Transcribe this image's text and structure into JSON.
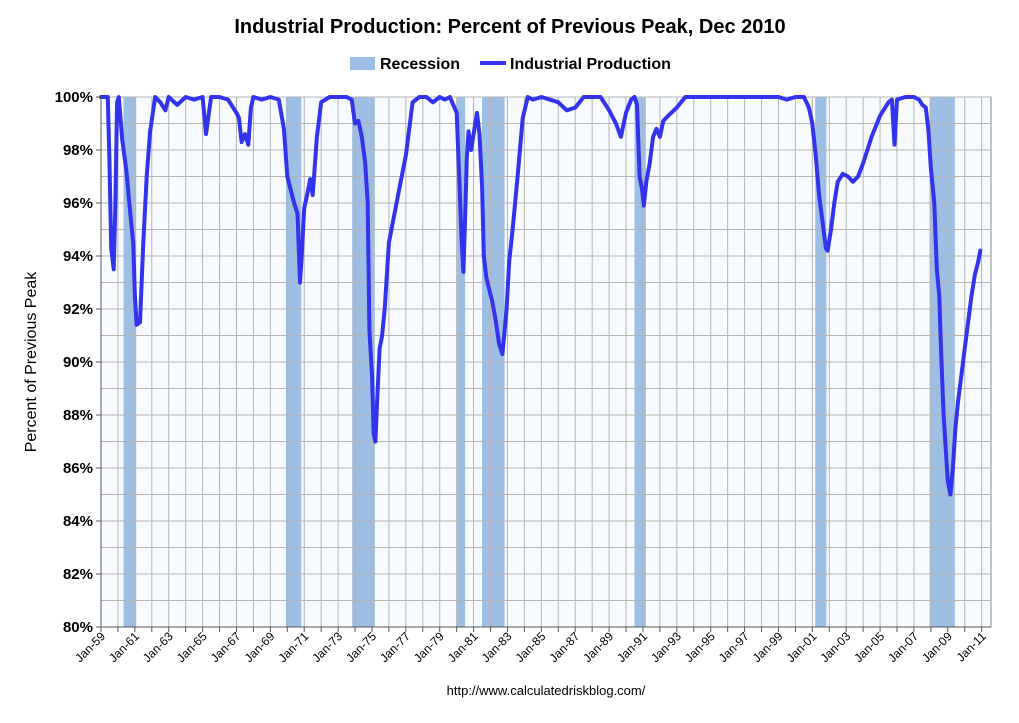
{
  "chart_data": {
    "type": "line",
    "title": "Industrial Production: Percent of Previous Peak, Dec 2010",
    "ylabel": "Percent of Previous Peak",
    "xlabel": "",
    "source": "http://www.calculatedriskblog.com/",
    "ylim": [
      80,
      100
    ],
    "xlim": [
      1959.0,
      2011.55
    ],
    "y_ticks": [
      "80%",
      "82%",
      "84%",
      "86%",
      "88%",
      "90%",
      "92%",
      "94%",
      "96%",
      "98%",
      "100%"
    ],
    "x_ticks": [
      "Jan-59",
      "Jan-61",
      "Jan-63",
      "Jan-65",
      "Jan-67",
      "Jan-69",
      "Jan-71",
      "Jan-73",
      "Jan-75",
      "Jan-77",
      "Jan-79",
      "Jan-81",
      "Jan-83",
      "Jan-85",
      "Jan-87",
      "Jan-89",
      "Jan-91",
      "Jan-93",
      "Jan-95",
      "Jan-97",
      "Jan-99",
      "Jan-01",
      "Jan-03",
      "Jan-05",
      "Jan-07",
      "Jan-09",
      "Jan-11"
    ],
    "grid": true,
    "legend_position": "top-center",
    "legend": [
      {
        "name": "Recession",
        "kind": "band",
        "color": "#9dbfe6"
      },
      {
        "name": "Industrial Production",
        "kind": "line",
        "color": "#3333ee"
      }
    ],
    "recessions": [
      [
        1960.33,
        1961.08
      ],
      [
        1969.92,
        1970.83
      ],
      [
        1973.83,
        1975.17
      ],
      [
        1980.0,
        1980.5
      ],
      [
        1981.5,
        1982.83
      ],
      [
        1990.5,
        1991.17
      ],
      [
        2001.17,
        2001.83
      ],
      [
        2007.92,
        2009.42
      ]
    ],
    "series": [
      {
        "name": "Industrial Production",
        "color": "#3333ee",
        "x": [
          1959.0,
          1959.4,
          1959.5,
          1959.6,
          1959.75,
          1959.85,
          1959.95,
          1960.05,
          1960.25,
          1960.5,
          1960.7,
          1960.9,
          1961.0,
          1961.1,
          1961.3,
          1961.5,
          1961.7,
          1961.9,
          1962.2,
          1962.5,
          1962.8,
          1963.0,
          1963.5,
          1964.0,
          1964.5,
          1965.0,
          1965.2,
          1965.5,
          1966.0,
          1966.5,
          1967.0,
          1967.15,
          1967.3,
          1967.5,
          1967.7,
          1967.85,
          1968.0,
          1968.5,
          1969.0,
          1969.5,
          1969.8,
          1970.0,
          1970.2,
          1970.4,
          1970.6,
          1970.75,
          1970.85,
          1971.0,
          1971.2,
          1971.35,
          1971.5,
          1971.75,
          1972.0,
          1972.5,
          1973.0,
          1973.5,
          1973.8,
          1974.0,
          1974.2,
          1974.4,
          1974.6,
          1974.75,
          1974.85,
          1975.0,
          1975.1,
          1975.2,
          1975.3,
          1975.45,
          1975.6,
          1975.75,
          1976.0,
          1976.3,
          1976.6,
          1977.0,
          1977.4,
          1977.8,
          1978.2,
          1978.6,
          1979.0,
          1979.3,
          1979.6,
          1979.8,
          1980.0,
          1980.15,
          1980.3,
          1980.4,
          1980.5,
          1980.6,
          1980.7,
          1980.85,
          1981.0,
          1981.2,
          1981.35,
          1981.5,
          1981.6,
          1981.75,
          1981.9,
          1982.1,
          1982.3,
          1982.5,
          1982.7,
          1982.85,
          1982.95,
          1983.1,
          1983.3,
          1983.6,
          1983.9,
          1984.2,
          1984.5,
          1985.0,
          1985.5,
          1986.0,
          1986.5,
          1987.0,
          1987.5,
          1988.0,
          1988.5,
          1989.0,
          1989.4,
          1989.7,
          1990.0,
          1990.3,
          1990.5,
          1990.65,
          1990.8,
          1990.95,
          1991.05,
          1991.2,
          1991.4,
          1991.6,
          1991.8,
          1992.0,
          1992.2,
          1992.5,
          1993.0,
          1993.5,
          1994.0,
          1995.0,
          1996.0,
          1997.0,
          1998.0,
          1999.0,
          1999.5,
          2000.0,
          2000.5,
          2000.8,
          2001.0,
          2001.2,
          2001.4,
          2001.6,
          2001.8,
          2001.9,
          2002.1,
          2002.3,
          2002.5,
          2002.8,
          2003.1,
          2003.4,
          2003.7,
          2004.0,
          2004.5,
          2005.0,
          2005.5,
          2005.7,
          2005.85,
          2006.0,
          2006.5,
          2007.0,
          2007.3,
          2007.5,
          2007.7,
          2007.85,
          2008.0,
          2008.2,
          2008.35,
          2008.5,
          2008.6,
          2008.75,
          2008.9,
          2009.0,
          2009.15,
          2009.3,
          2009.45,
          2009.6,
          2009.8,
          2010.0,
          2010.2,
          2010.4,
          2010.6,
          2010.8,
          2010.92
        ],
        "values": [
          100.0,
          100.0,
          97.5,
          94.3,
          93.5,
          96.0,
          99.8,
          100.0,
          98.4,
          97.2,
          95.8,
          94.5,
          92.5,
          91.4,
          91.5,
          94.5,
          97.0,
          98.7,
          100.0,
          99.8,
          99.5,
          100.0,
          99.7,
          100.0,
          99.9,
          100.0,
          98.6,
          100.0,
          100.0,
          99.9,
          99.4,
          99.2,
          98.3,
          98.6,
          98.2,
          99.6,
          100.0,
          99.9,
          100.0,
          99.9,
          98.8,
          97.0,
          96.5,
          96.0,
          95.6,
          93.0,
          94.0,
          95.8,
          96.4,
          96.9,
          96.3,
          98.5,
          99.8,
          100.0,
          100.0,
          100.0,
          99.9,
          99.0,
          99.1,
          98.5,
          97.5,
          96.0,
          91.2,
          89.5,
          87.3,
          87.0,
          88.5,
          90.5,
          91.0,
          92.0,
          94.5,
          95.5,
          96.5,
          97.8,
          99.8,
          100.0,
          100.0,
          99.8,
          100.0,
          99.9,
          100.0,
          99.7,
          99.4,
          97.0,
          94.5,
          93.4,
          95.4,
          97.7,
          98.7,
          98.0,
          98.6,
          99.4,
          98.6,
          96.6,
          94.0,
          93.2,
          92.8,
          92.3,
          91.6,
          90.7,
          90.3,
          91.3,
          92.0,
          93.8,
          95.0,
          97.0,
          99.2,
          100.0,
          99.9,
          100.0,
          99.9,
          99.8,
          99.5,
          99.6,
          100.0,
          100.0,
          100.0,
          99.5,
          99.0,
          98.5,
          99.4,
          99.9,
          100.0,
          99.7,
          97.0,
          96.5,
          95.9,
          96.8,
          97.5,
          98.5,
          98.8,
          98.5,
          99.1,
          99.3,
          99.6,
          100.0,
          100.0,
          100.0,
          100.0,
          100.0,
          100.0,
          100.0,
          99.9,
          100.0,
          100.0,
          99.6,
          99.0,
          97.8,
          96.3,
          95.3,
          94.3,
          94.2,
          95.0,
          96.0,
          96.8,
          97.1,
          97.0,
          96.8,
          97.0,
          97.5,
          98.5,
          99.3,
          99.8,
          99.9,
          98.2,
          99.9,
          100.0,
          100.0,
          99.9,
          99.7,
          99.6,
          98.8,
          97.3,
          96.0,
          93.5,
          92.5,
          90.5,
          88.0,
          86.5,
          85.5,
          85.0,
          86.0,
          87.5,
          88.5,
          89.5,
          90.5,
          91.5,
          92.5,
          93.3,
          93.8,
          94.2
        ]
      }
    ]
  }
}
